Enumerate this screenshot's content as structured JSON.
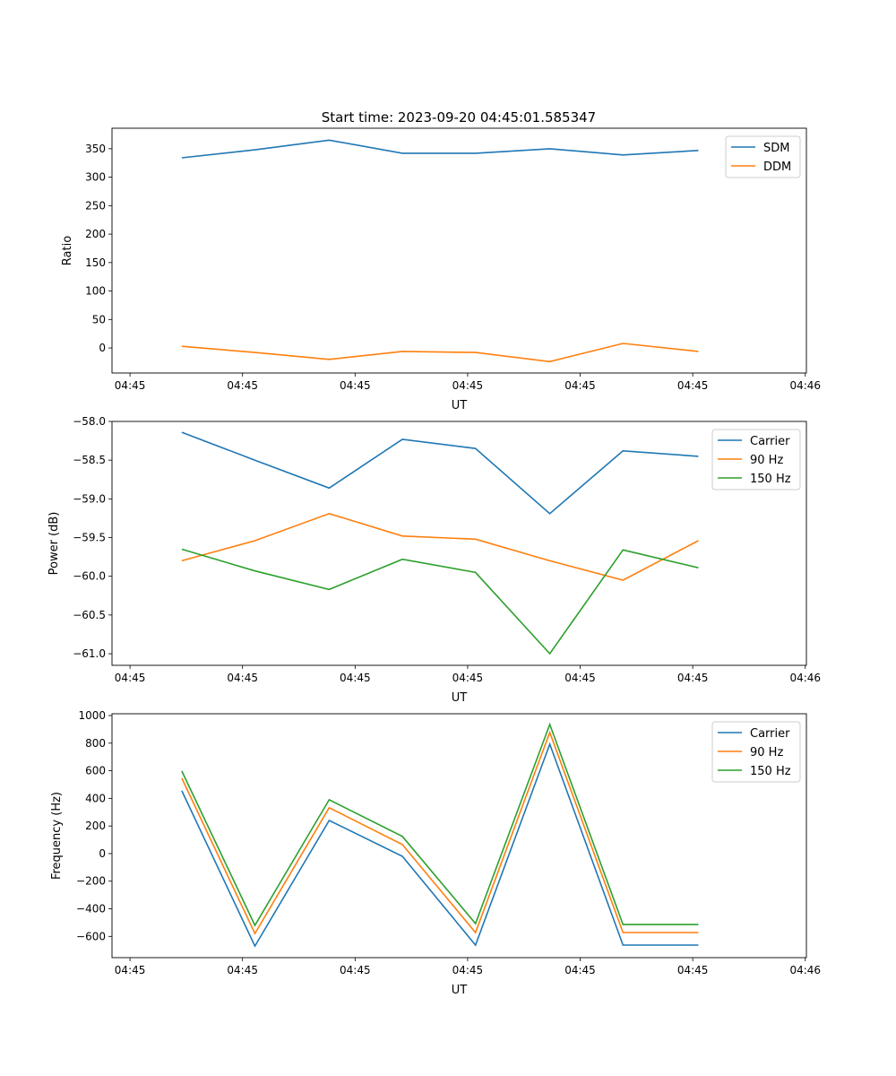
{
  "title": "Start time: 2023-09-20 04:45:01.585347",
  "chart_data": [
    {
      "type": "line",
      "xlabel": "UT",
      "ylabel": "Ratio",
      "x_unit": "seconds after 04:45:00",
      "x": [
        4.6,
        11.1,
        17.7,
        24.2,
        30.7,
        37.3,
        43.8,
        50.5
      ],
      "xlim": [
        -1.6,
        60.1
      ],
      "xticks": [
        0,
        10,
        20,
        30,
        40,
        50,
        60
      ],
      "xtick_labels": [
        "04:45",
        "04:45",
        "04:45",
        "04:45",
        "04:45",
        "04:45",
        "04:46"
      ],
      "ylim": [
        -44,
        386
      ],
      "yticks": [
        0,
        50,
        100,
        150,
        200,
        250,
        300,
        350
      ],
      "ytick_labels": [
        "0",
        "50",
        "100",
        "150",
        "200",
        "250",
        "300",
        "350"
      ],
      "legend": "top-right",
      "series": [
        {
          "name": "SDM",
          "color": "#1f77b4",
          "values": [
            334,
            348,
            365,
            342,
            342,
            350,
            339,
            347
          ]
        },
        {
          "name": "DDM",
          "color": "#ff7f0e",
          "values": [
            3,
            -8,
            -20,
            -6,
            -8,
            -24,
            8,
            -6
          ]
        }
      ]
    },
    {
      "type": "line",
      "xlabel": "UT",
      "ylabel": "Power (dB)",
      "x_unit": "seconds after 04:45:00",
      "x": [
        4.6,
        11.1,
        17.7,
        24.2,
        30.7,
        37.3,
        43.8,
        50.5
      ],
      "xlim": [
        -1.6,
        60.1
      ],
      "xticks": [
        0,
        10,
        20,
        30,
        40,
        50,
        60
      ],
      "xtick_labels": [
        "04:45",
        "04:45",
        "04:45",
        "04:45",
        "04:45",
        "04:45",
        "04:46"
      ],
      "ylim": [
        -61.15,
        -58.0
      ],
      "yticks": [
        -58.0,
        -58.5,
        -59.0,
        -59.5,
        -60.0,
        -60.5,
        -61.0
      ],
      "ytick_labels": [
        "−58.0",
        "−58.5",
        "−59.0",
        "−59.5",
        "−60.0",
        "−60.5",
        "−61.0"
      ],
      "legend": "top-right",
      "series": [
        {
          "name": "Carrier",
          "color": "#1f77b4",
          "values": [
            -58.14,
            -58.5,
            -58.86,
            -58.23,
            -58.35,
            -59.19,
            -58.38,
            -58.45
          ]
        },
        {
          "name": "90 Hz",
          "color": "#ff7f0e",
          "values": [
            -59.8,
            -59.54,
            -59.19,
            -59.48,
            -59.52,
            -59.8,
            -60.05,
            -59.54
          ]
        },
        {
          "name": "150 Hz",
          "color": "#2ca02c",
          "values": [
            -59.65,
            -59.93,
            -60.17,
            -59.78,
            -59.95,
            -61.0,
            -59.66,
            -59.89
          ]
        }
      ]
    },
    {
      "type": "line",
      "xlabel": "UT",
      "ylabel": "Frequency (Hz)",
      "x_unit": "seconds after 04:45:00",
      "x": [
        4.6,
        11.1,
        17.7,
        24.2,
        30.7,
        37.3,
        43.8,
        50.5
      ],
      "xlim": [
        -1.6,
        60.1
      ],
      "xticks": [
        0,
        10,
        20,
        30,
        40,
        50,
        60
      ],
      "xtick_labels": [
        "04:45",
        "04:45",
        "04:45",
        "04:45",
        "04:45",
        "04:45",
        "04:46"
      ],
      "ylim": [
        -754,
        1013
      ],
      "yticks": [
        1000,
        800,
        600,
        400,
        200,
        0,
        -200,
        -400,
        -600
      ],
      "ytick_labels": [
        "1000",
        "800",
        "600",
        "400",
        "200",
        "0",
        "−200",
        "−400",
        "−600"
      ],
      "legend": "top-right",
      "series": [
        {
          "name": "Carrier",
          "color": "#1f77b4",
          "values": [
            455,
            -670,
            240,
            -20,
            -663,
            793,
            -663,
            -663
          ]
        },
        {
          "name": "90 Hz",
          "color": "#ff7f0e",
          "values": [
            546,
            -579,
            332,
            65,
            -572,
            878,
            -572,
            -572
          ]
        },
        {
          "name": "150 Hz",
          "color": "#2ca02c",
          "values": [
            598,
            -520,
            390,
            124,
            -507,
            936,
            -514,
            -514
          ]
        }
      ]
    }
  ]
}
